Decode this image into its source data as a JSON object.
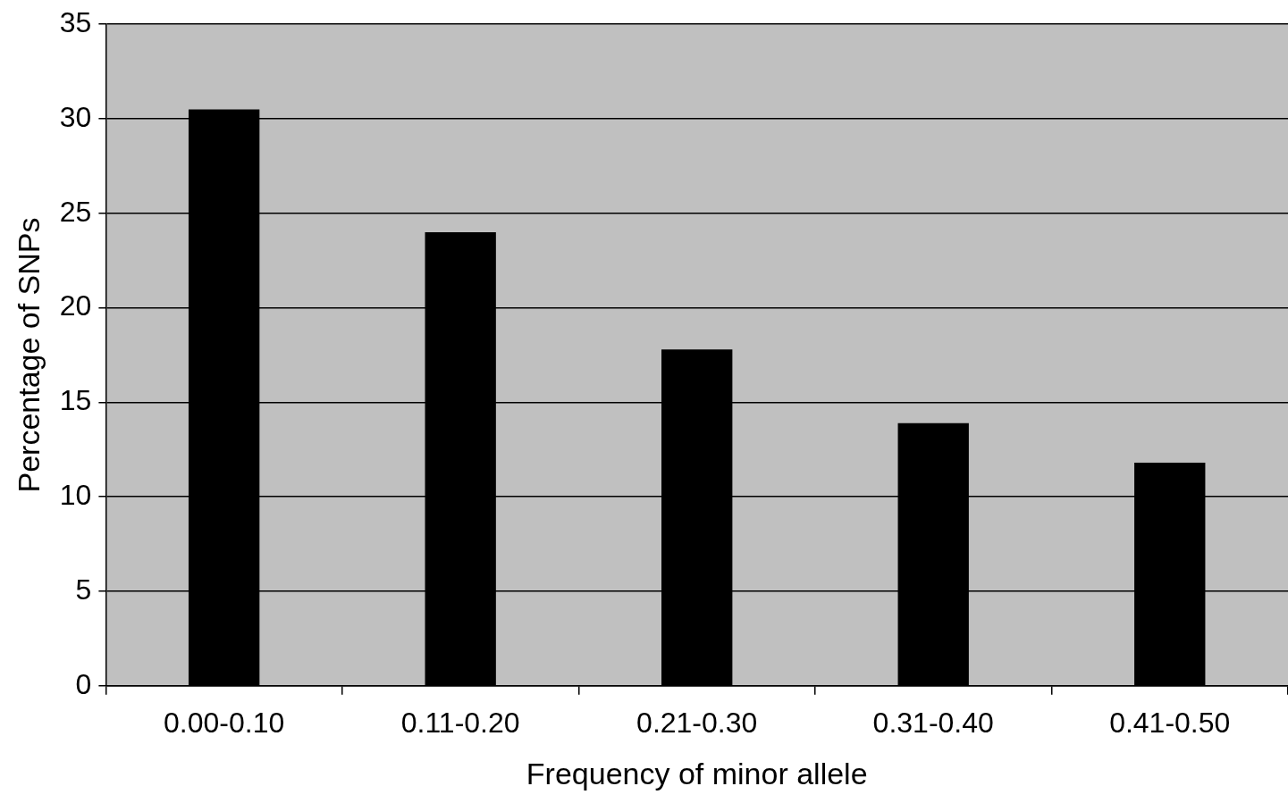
{
  "chart_data": {
    "type": "bar",
    "xlabel": "Frequency of minor allele",
    "ylabel": "Percentage of SNPs",
    "categories": [
      "0.00-0.10",
      "0.11-0.20",
      "0.21-0.30",
      "0.31-0.40",
      "0.41-0.50"
    ],
    "values": [
      30.5,
      24,
      17.8,
      13.9,
      11.8
    ],
    "color": "#000000",
    "ylim": [
      0,
      35
    ],
    "yticks": [
      0,
      5,
      10,
      15,
      20,
      25,
      30,
      35
    ],
    "grid": "y"
  }
}
